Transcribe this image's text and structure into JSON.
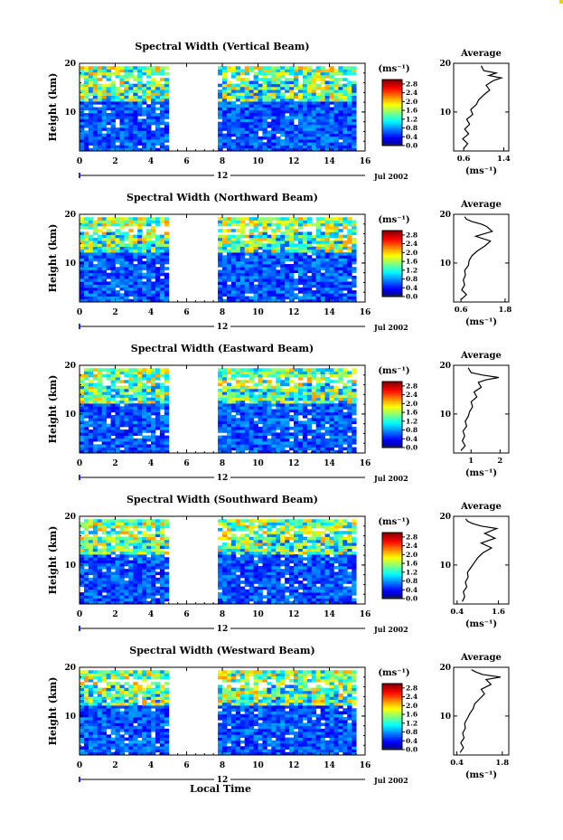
{
  "chart_data": [
    {
      "type": "heatmap",
      "title": "Spectral Width (Vertical Beam)",
      "ylabel": "Height (km)",
      "xlabel": "",
      "date_label": "12",
      "month_label": "Jul 2002",
      "x_ticks": [
        "0",
        "2",
        "4",
        "6",
        "8",
        "10",
        "12",
        "14",
        "16"
      ],
      "y_ticks": [
        "10",
        "20"
      ],
      "xlim": [
        0,
        16
      ],
      "ylim": [
        2,
        20
      ],
      "data_gap_hours": [
        5.0,
        7.7
      ],
      "colorbar": {
        "unit": "(ms⁻¹)",
        "ticks": [
          "0.0",
          "0.4",
          "0.8",
          "1.2",
          "1.6",
          "2.0",
          "2.4",
          "2.8"
        ],
        "range": [
          0.0,
          3.0
        ]
      },
      "profile": {
        "title": "Average",
        "xlabel": "(ms⁻¹)",
        "x_ticks": [
          "0.6",
          "1.4"
        ],
        "xlim": [
          0.4,
          1.5
        ],
        "y_ticks": [
          "10",
          "20"
        ],
        "ylim": [
          2,
          20
        ],
        "series": [
          {
            "y": 2.5,
            "x": 0.6
          },
          {
            "y": 3.5,
            "x": 0.68
          },
          {
            "y": 4.5,
            "x": 0.58
          },
          {
            "y": 5.5,
            "x": 0.7
          },
          {
            "y": 6.5,
            "x": 0.62
          },
          {
            "y": 7.5,
            "x": 0.72
          },
          {
            "y": 8.5,
            "x": 0.66
          },
          {
            "y": 9.5,
            "x": 0.78
          },
          {
            "y": 10.5,
            "x": 0.74
          },
          {
            "y": 11.5,
            "x": 0.85
          },
          {
            "y": 12.5,
            "x": 0.9
          },
          {
            "y": 13.5,
            "x": 1.0
          },
          {
            "y": 14.5,
            "x": 1.12
          },
          {
            "y": 15.5,
            "x": 1.05
          },
          {
            "y": 16.5,
            "x": 1.2
          },
          {
            "y": 17.0,
            "x": 1.35
          },
          {
            "y": 17.5,
            "x": 1.1
          },
          {
            "y": 18.0,
            "x": 1.25
          },
          {
            "y": 18.5,
            "x": 1.0
          },
          {
            "y": 19.5,
            "x": 0.95
          }
        ]
      }
    },
    {
      "type": "heatmap",
      "title": "Spectral Width (Northward Beam)",
      "ylabel": "Height (km)",
      "xlabel": "",
      "date_label": "12",
      "month_label": "Jul 2002",
      "x_ticks": [
        "0",
        "2",
        "4",
        "6",
        "8",
        "10",
        "12",
        "14",
        "16"
      ],
      "y_ticks": [
        "10",
        "20"
      ],
      "xlim": [
        0,
        16
      ],
      "ylim": [
        2,
        20
      ],
      "data_gap_hours": [
        5.0,
        7.7
      ],
      "colorbar": {
        "unit": "(ms⁻¹)",
        "ticks": [
          "0.0",
          "0.4",
          "0.8",
          "1.2",
          "1.6",
          "2.0",
          "2.4",
          "2.8"
        ],
        "range": [
          0.0,
          3.0
        ]
      },
      "profile": {
        "title": "Average",
        "xlabel": "(ms⁻¹)",
        "x_ticks": [
          "0.6",
          "1.8"
        ],
        "xlim": [
          0.4,
          1.9
        ],
        "y_ticks": [
          "10",
          "20"
        ],
        "ylim": [
          2,
          20
        ],
        "series": [
          {
            "y": 2.5,
            "x": 0.6
          },
          {
            "y": 3.5,
            "x": 0.75
          },
          {
            "y": 4.5,
            "x": 0.62
          },
          {
            "y": 5.5,
            "x": 0.7
          },
          {
            "y": 6.5,
            "x": 0.66
          },
          {
            "y": 7.5,
            "x": 0.72
          },
          {
            "y": 8.5,
            "x": 0.7
          },
          {
            "y": 9.5,
            "x": 0.8
          },
          {
            "y": 10.5,
            "x": 0.82
          },
          {
            "y": 11.5,
            "x": 0.9
          },
          {
            "y": 12.5,
            "x": 1.05
          },
          {
            "y": 13.5,
            "x": 1.25
          },
          {
            "y": 14.5,
            "x": 1.4
          },
          {
            "y": 15.5,
            "x": 1.0
          },
          {
            "y": 16.5,
            "x": 1.45
          },
          {
            "y": 17.5,
            "x": 1.3
          },
          {
            "y": 18.0,
            "x": 1.15
          },
          {
            "y": 18.5,
            "x": 0.9
          },
          {
            "y": 19.0,
            "x": 0.75
          },
          {
            "y": 19.5,
            "x": 0.7
          }
        ]
      }
    },
    {
      "type": "heatmap",
      "title": "Spectral Width (Eastward Beam)",
      "ylabel": "Height (km)",
      "xlabel": "",
      "date_label": "12",
      "month_label": "Jul 2002",
      "x_ticks": [
        "0",
        "2",
        "4",
        "6",
        "8",
        "10",
        "12",
        "14",
        "16"
      ],
      "y_ticks": [
        "10",
        "20"
      ],
      "xlim": [
        0,
        16
      ],
      "ylim": [
        2,
        20
      ],
      "data_gap_hours": [
        5.0,
        7.7
      ],
      "colorbar": {
        "unit": "(ms⁻¹)",
        "ticks": [
          "0.0",
          "0.4",
          "0.8",
          "1.2",
          "1.6",
          "2.0",
          "2.4",
          "2.8"
        ],
        "range": [
          0.0,
          3.0
        ]
      },
      "profile": {
        "title": "Average",
        "xlabel": "(ms⁻¹)",
        "x_ticks": [
          "1",
          "2"
        ],
        "xlim": [
          0.4,
          2.3
        ],
        "y_ticks": [
          "10",
          "20"
        ],
        "ylim": [
          2,
          20
        ],
        "series": [
          {
            "y": 2.5,
            "x": 0.65
          },
          {
            "y": 3.5,
            "x": 0.8
          },
          {
            "y": 4.5,
            "x": 0.7
          },
          {
            "y": 5.5,
            "x": 0.78
          },
          {
            "y": 6.5,
            "x": 0.72
          },
          {
            "y": 7.5,
            "x": 0.85
          },
          {
            "y": 8.5,
            "x": 0.8
          },
          {
            "y": 9.5,
            "x": 0.9
          },
          {
            "y": 10.5,
            "x": 0.95
          },
          {
            "y": 11.5,
            "x": 1.05
          },
          {
            "y": 12.5,
            "x": 1.0
          },
          {
            "y": 13.5,
            "x": 1.2
          },
          {
            "y": 14.5,
            "x": 1.1
          },
          {
            "y": 15.5,
            "x": 1.35
          },
          {
            "y": 16.5,
            "x": 1.25
          },
          {
            "y": 17.0,
            "x": 1.5
          },
          {
            "y": 17.5,
            "x": 1.95
          },
          {
            "y": 18.0,
            "x": 1.4
          },
          {
            "y": 18.5,
            "x": 1.0
          },
          {
            "y": 19.5,
            "x": 0.9
          }
        ]
      }
    },
    {
      "type": "heatmap",
      "title": "Spectral Width (Southward Beam)",
      "ylabel": "Height (km)",
      "xlabel": "",
      "date_label": "12",
      "month_label": "Jul 2002",
      "x_ticks": [
        "0",
        "2",
        "4",
        "6",
        "8",
        "10",
        "12",
        "14",
        "16"
      ],
      "y_ticks": [
        "10",
        "20"
      ],
      "xlim": [
        0,
        16
      ],
      "ylim": [
        2,
        20
      ],
      "data_gap_hours": [
        5.0,
        7.7
      ],
      "colorbar": {
        "unit": "(ms⁻¹)",
        "ticks": [
          "0.0",
          "0.4",
          "0.8",
          "1.2",
          "1.6",
          "2.0",
          "2.4",
          "2.8"
        ],
        "range": [
          0.0,
          3.0
        ]
      },
      "profile": {
        "title": "Average",
        "xlabel": "(ms⁻¹)",
        "x_ticks": [
          "0.4",
          "1.6"
        ],
        "xlim": [
          0.3,
          1.9
        ],
        "y_ticks": [
          "10",
          "20"
        ],
        "ylim": [
          2,
          20
        ],
        "series": [
          {
            "y": 2.5,
            "x": 0.55
          },
          {
            "y": 3.5,
            "x": 0.62
          },
          {
            "y": 4.5,
            "x": 0.58
          },
          {
            "y": 5.5,
            "x": 0.68
          },
          {
            "y": 6.5,
            "x": 0.64
          },
          {
            "y": 7.5,
            "x": 0.72
          },
          {
            "y": 8.5,
            "x": 0.7
          },
          {
            "y": 9.5,
            "x": 0.8
          },
          {
            "y": 10.5,
            "x": 0.9
          },
          {
            "y": 11.5,
            "x": 1.0
          },
          {
            "y": 12.5,
            "x": 1.15
          },
          {
            "y": 13.5,
            "x": 1.4
          },
          {
            "y": 14.5,
            "x": 1.1
          },
          {
            "y": 15.5,
            "x": 1.5
          },
          {
            "y": 16.5,
            "x": 1.2
          },
          {
            "y": 17.5,
            "x": 1.55
          },
          {
            "y": 18.0,
            "x": 1.1
          },
          {
            "y": 18.5,
            "x": 0.85
          },
          {
            "y": 19.0,
            "x": 0.7
          },
          {
            "y": 19.5,
            "x": 0.65
          }
        ]
      }
    },
    {
      "type": "heatmap",
      "title": "Spectral Width (Westward Beam)",
      "ylabel": "Height (km)",
      "xlabel": "Local Time",
      "date_label": "12",
      "month_label": "Jul 2002",
      "x_ticks": [
        "0",
        "2",
        "4",
        "6",
        "8",
        "10",
        "12",
        "14",
        "16"
      ],
      "y_ticks": [
        "10",
        "20"
      ],
      "xlim": [
        0,
        16
      ],
      "ylim": [
        2,
        20
      ],
      "data_gap_hours": [
        5.0,
        7.7
      ],
      "colorbar": {
        "unit": "(ms⁻¹)",
        "ticks": [
          "0.0",
          "0.4",
          "0.8",
          "1.2",
          "1.6",
          "2.0",
          "2.4",
          "2.8"
        ],
        "range": [
          0.0,
          3.0
        ]
      },
      "profile": {
        "title": "Average",
        "xlabel": "(ms⁻¹)",
        "x_ticks": [
          "0.4",
          "1.8"
        ],
        "xlim": [
          0.3,
          2.0
        ],
        "y_ticks": [
          "10",
          "20"
        ],
        "ylim": [
          2,
          20
        ],
        "series": [
          {
            "y": 2.5,
            "x": 0.5
          },
          {
            "y": 3.5,
            "x": 0.6
          },
          {
            "y": 4.5,
            "x": 0.52
          },
          {
            "y": 5.5,
            "x": 0.62
          },
          {
            "y": 6.5,
            "x": 0.58
          },
          {
            "y": 7.5,
            "x": 0.66
          },
          {
            "y": 8.5,
            "x": 0.64
          },
          {
            "y": 9.5,
            "x": 0.72
          },
          {
            "y": 10.5,
            "x": 0.8
          },
          {
            "y": 11.5,
            "x": 0.9
          },
          {
            "y": 12.5,
            "x": 0.95
          },
          {
            "y": 13.5,
            "x": 1.1
          },
          {
            "y": 14.5,
            "x": 1.25
          },
          {
            "y": 15.5,
            "x": 1.15
          },
          {
            "y": 16.5,
            "x": 1.45
          },
          {
            "y": 17.5,
            "x": 1.3
          },
          {
            "y": 18.0,
            "x": 1.75
          },
          {
            "y": 18.5,
            "x": 1.2
          },
          {
            "y": 19.0,
            "x": 1.0
          },
          {
            "y": 19.5,
            "x": 0.85
          }
        ]
      }
    }
  ]
}
